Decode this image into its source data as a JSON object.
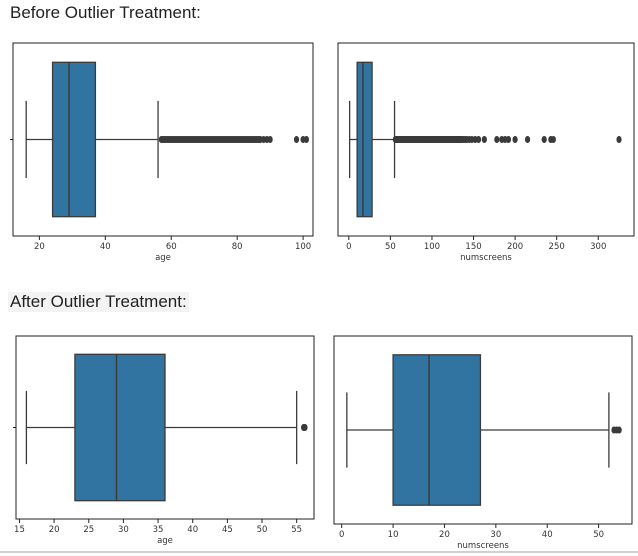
{
  "headings": {
    "before": "Before Outlier Treatment:",
    "after": "After Outlier Treatment:"
  },
  "colors": {
    "box": "#3274a1",
    "line": "#3b3b3b"
  },
  "chart_data": [
    {
      "id": "before-age",
      "type": "box",
      "xlabel": "age",
      "xlim": [
        12,
        103
      ],
      "ticks": [
        20,
        40,
        60,
        80,
        100
      ],
      "stats": {
        "whislo": 16,
        "q1": 24,
        "med": 29,
        "q3": 37,
        "whishi": 56
      },
      "fliers": [
        57,
        57.5,
        58,
        58.5,
        59,
        59.5,
        60,
        60.5,
        61,
        61.5,
        62,
        62.5,
        63,
        63.5,
        64,
        64.5,
        65,
        65.5,
        66,
        66.5,
        67,
        67.5,
        68,
        68.5,
        69,
        69.5,
        70,
        70.5,
        71,
        71.5,
        72,
        72.5,
        73,
        73.5,
        74,
        74.5,
        75,
        75.5,
        76,
        76.5,
        77,
        77.5,
        78,
        78.5,
        79,
        79.5,
        80,
        80.5,
        81,
        81.5,
        82,
        82.5,
        83,
        83.5,
        84,
        84.5,
        85,
        85.5,
        86,
        86.5,
        87,
        88,
        89,
        90,
        98,
        100,
        101
      ]
    },
    {
      "id": "before-numscreens",
      "type": "box",
      "xlabel": "numscreens",
      "xlim": [
        -13,
        343
      ],
      "ticks": [
        0,
        50,
        100,
        150,
        200,
        250,
        300
      ],
      "stats": {
        "whislo": 1,
        "q1": 10,
        "med": 17,
        "q3": 28,
        "whishi": 55
      },
      "fliers": [
        56,
        57,
        58,
        59,
        60,
        61,
        62,
        63,
        64,
        65,
        66,
        67,
        68,
        69,
        70,
        71,
        72,
        73,
        74,
        75,
        76,
        77,
        78,
        79,
        80,
        81,
        82,
        83,
        84,
        85,
        86,
        87,
        88,
        89,
        90,
        91,
        92,
        93,
        94,
        95,
        96,
        97,
        98,
        99,
        100,
        101,
        102,
        103,
        104,
        105,
        106,
        107,
        108,
        109,
        110,
        111,
        112,
        113,
        114,
        115,
        116,
        117,
        118,
        119,
        120,
        121,
        122,
        123,
        124,
        125,
        126,
        127,
        128,
        129,
        130,
        131,
        132,
        133,
        134,
        135,
        136,
        138,
        140,
        142,
        145,
        148,
        152,
        156,
        163,
        178,
        184,
        188,
        192,
        200,
        215,
        235,
        243,
        246,
        325
      ]
    },
    {
      "id": "after-age",
      "type": "box",
      "xlabel": "age",
      "xlim": [
        14.5,
        57.5
      ],
      "ticks": [
        15,
        20,
        25,
        30,
        35,
        40,
        45,
        50,
        55
      ],
      "stats": {
        "whislo": 16,
        "q1": 23,
        "med": 29,
        "q3": 36,
        "whishi": 55
      },
      "fliers": [
        56,
        56.2
      ]
    },
    {
      "id": "after-numscreens",
      "type": "box",
      "xlabel": "numscreens",
      "xlim": [
        -1.5,
        56.5
      ],
      "ticks": [
        0,
        10,
        20,
        30,
        40,
        50
      ],
      "stats": {
        "whislo": 1,
        "q1": 10,
        "med": 17,
        "q3": 27,
        "whishi": 52
      },
      "fliers": [
        53,
        53.5,
        54
      ]
    }
  ]
}
